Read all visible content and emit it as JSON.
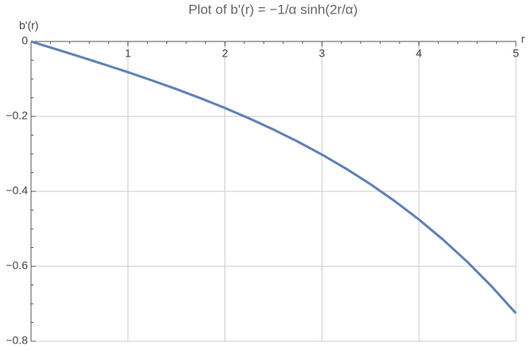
{
  "chart_data": {
    "type": "line",
    "title": "Plot of b'(r) = −1/α sinh(2r/α)",
    "x_label": "r",
    "y_label": "b'(r)",
    "x": [
      0,
      0.25,
      0.5,
      0.75,
      1,
      1.25,
      1.5,
      1.75,
      2,
      2.25,
      2.5,
      2.75,
      3,
      3.25,
      3.5,
      3.75,
      4,
      4.25,
      4.5,
      4.75,
      5
    ],
    "values": [
      0,
      -0.02003,
      -0.04027,
      -0.0609,
      -0.08215,
      -0.10422,
      -0.12733,
      -0.15172,
      -0.17762,
      -0.2053,
      -0.23504,
      -0.26713,
      -0.30189,
      -0.33968,
      -0.38086,
      -0.42586,
      -0.47511,
      -0.52913,
      -0.58843,
      -0.65363,
      -0.72537
    ],
    "color": "#5e81b5",
    "xlim": [
      0,
      5
    ],
    "xticks": [
      1,
      2,
      3,
      4,
      5
    ],
    "ylim": [
      -0.8,
      0
    ],
    "yticks": [
      0,
      {
        "value": -0.2,
        "label": "−0.2"
      },
      {
        "value": -0.4,
        "label": "−0.4"
      },
      {
        "value": -0.6,
        "label": "−0.6"
      },
      {
        "value": -0.8,
        "label": "−0.8"
      }
    ],
    "grid": true
  }
}
